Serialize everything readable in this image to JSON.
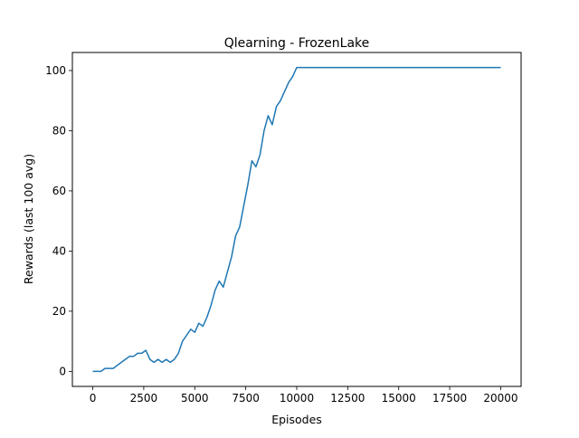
{
  "chart_data": {
    "type": "line",
    "title": "Qlearning - FrozenLake",
    "xlabel": "Episodes",
    "ylabel": "Rewards (last 100 avg)",
    "xlim": [
      -1000,
      21000
    ],
    "ylim": [
      -5,
      106
    ],
    "xticks": [
      0,
      2500,
      5000,
      7500,
      10000,
      12500,
      15000,
      17500,
      20000
    ],
    "xtick_labels": [
      "0",
      "2500",
      "5000",
      "7500",
      "10000",
      "12500",
      "15000",
      "17500",
      "20000"
    ],
    "yticks": [
      0,
      20,
      40,
      60,
      80,
      100
    ],
    "ytick_labels": [
      "0",
      "20",
      "40",
      "60",
      "80",
      "100"
    ],
    "grid": false,
    "line_color": "#1f77b4",
    "series": [
      {
        "x": [
          0,
          400,
          600,
          800,
          1000,
          1200,
          1400,
          1600,
          1800,
          2000,
          2200,
          2400,
          2600,
          2800,
          3000,
          3200,
          3400,
          3600,
          3800,
          4000,
          4200,
          4400,
          4600,
          4800,
          5000,
          5200,
          5400,
          5600,
          5800,
          6000,
          6200,
          6400,
          6600,
          6800,
          7000,
          7200,
          7400,
          7600,
          7800,
          8000,
          8200,
          8400,
          8600,
          8800,
          9000,
          9200,
          9400,
          9600,
          9800,
          10000,
          12000,
          14000,
          16000,
          18000,
          20000
        ],
        "y": [
          0,
          0,
          1,
          1,
          1,
          2,
          3,
          4,
          5,
          5,
          6,
          6,
          7,
          4,
          3,
          4,
          3,
          4,
          3,
          4,
          6,
          10,
          12,
          14,
          13,
          16,
          15,
          18,
          22,
          27,
          30,
          28,
          33,
          38,
          45,
          48,
          55,
          62,
          70,
          68,
          72,
          80,
          85,
          82,
          88,
          90,
          93,
          96,
          98,
          101,
          101,
          101,
          101,
          101,
          101
        ]
      }
    ]
  }
}
